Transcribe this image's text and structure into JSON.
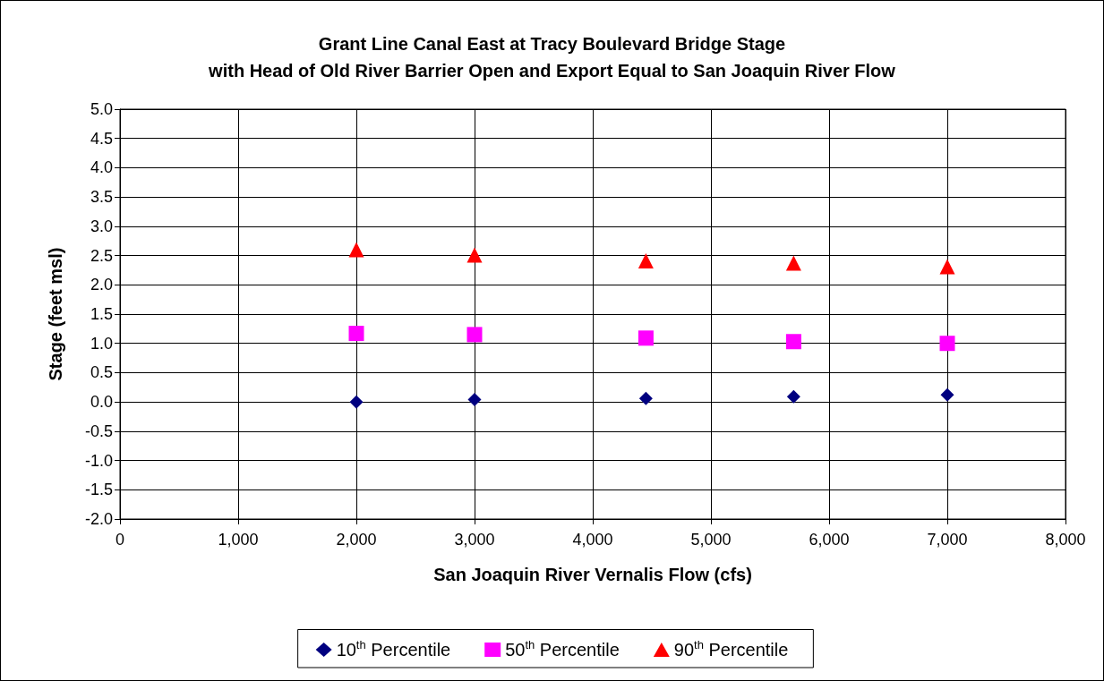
{
  "chart_data": {
    "type": "scatter",
    "title": "Grant Line Canal East at Tracy Boulevard Bridge Stage\nwith Head of Old River Barrier Open and Export Equal to San Joaquin River Flow",
    "xlabel": "San Joaquin River Vernalis Flow (cfs)",
    "ylabel": "Stage (feet msl)",
    "x": [
      2000,
      3000,
      4450,
      5700,
      7000
    ],
    "series": [
      {
        "name": "10$^{th}$ Percentile",
        "color": "#000080",
        "marker": "diamond",
        "values": [
          0.0,
          0.04,
          0.06,
          0.09,
          0.12
        ]
      },
      {
        "name": "50$^{th}$ Percentile",
        "color": "#ff00ff",
        "marker": "square",
        "values": [
          1.17,
          1.15,
          1.09,
          1.03,
          1.0
        ]
      },
      {
        "name": "90$^{th}$ Percentile",
        "color": "#ff0000",
        "marker": "triangle",
        "values": [
          2.6,
          2.51,
          2.41,
          2.37,
          2.31
        ]
      }
    ],
    "xlim": [
      0,
      8000
    ],
    "xticks": [
      0,
      {
        "value": 1000,
        "label": "1,000"
      },
      {
        "value": 2000,
        "label": "2,000"
      },
      {
        "value": 3000,
        "label": "3,000"
      },
      {
        "value": 4000,
        "label": "4,000"
      },
      {
        "value": 5000,
        "label": "5,000"
      },
      {
        "value": 6000,
        "label": "6,000"
      },
      {
        "value": 7000,
        "label": "7,000"
      },
      {
        "value": 8000,
        "label": "8,000"
      }
    ],
    "ylim": [
      -2,
      5
    ],
    "yticks": [
      {
        "value": -2,
        "label": "-2.0"
      },
      {
        "value": -1.5,
        "label": "-1.5"
      },
      {
        "value": -1,
        "label": "-1.0"
      },
      {
        "value": -0.5,
        "label": "-0.5"
      },
      {
        "value": 0,
        "label": "0.0"
      },
      {
        "value": 0.5,
        "label": "0.5"
      },
      {
        "value": 1,
        "label": "1.0"
      },
      {
        "value": 1.5,
        "label": "1.5"
      },
      {
        "value": 2,
        "label": "2.0"
      },
      {
        "value": 2.5,
        "label": "2.5"
      },
      {
        "value": 3,
        "label": "3.0"
      },
      {
        "value": 3.5,
        "label": "3.5"
      },
      {
        "value": 4,
        "label": "4.0"
      },
      {
        "value": 4.5,
        "label": "4.5"
      },
      {
        "value": 5,
        "label": "5.0"
      }
    ],
    "grid": true,
    "legend": "bottom"
  }
}
